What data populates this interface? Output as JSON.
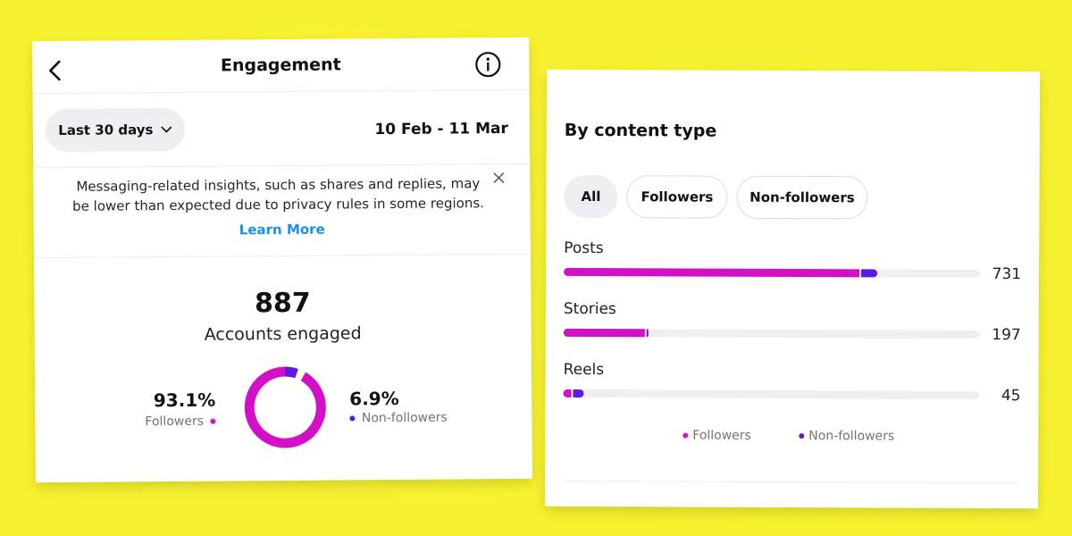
{
  "colors": {
    "background": "#f7f22f",
    "followers": "#d40fc8",
    "non_followers": "#5a1ae0",
    "track": "#efeff2",
    "link": "#1b8fe8"
  },
  "engagement": {
    "header": {
      "title": "Engagement",
      "back_icon": "chevron-left-icon",
      "info_icon": "info-circle-icon"
    },
    "date_filter": {
      "label": "Last 30 days",
      "icon": "chevron-down-icon"
    },
    "date_range": "10 Feb - 11 Mar",
    "notice": {
      "text": "Messaging-related insights, such as shares and replies, may be lower than expected due to privacy rules in some regions.",
      "link": "Learn More",
      "close_icon": "close-icon"
    },
    "summary": {
      "value": "887",
      "label": "Accounts engaged",
      "followers": {
        "percent": "93.1%",
        "label": "Followers",
        "fraction": 0.931
      },
      "non_followers": {
        "percent": "6.9%",
        "label": "Non-followers",
        "fraction": 0.069
      }
    }
  },
  "content_type": {
    "title": "By content type",
    "filters": [
      {
        "label": "All",
        "active": true
      },
      {
        "label": "Followers",
        "active": false
      },
      {
        "label": "Non-followers",
        "active": false
      }
    ],
    "max_value": 1000,
    "rows": [
      {
        "label": "Posts",
        "value": "731",
        "followers": 0.71,
        "non_followers": 0.04
      },
      {
        "label": "Stories",
        "value": "197",
        "followers": 0.195,
        "non_followers": 0.005
      },
      {
        "label": "Reels",
        "value": "45",
        "followers": 0.02,
        "non_followers": 0.025
      }
    ],
    "legend": [
      "Followers",
      "Non-followers"
    ]
  }
}
